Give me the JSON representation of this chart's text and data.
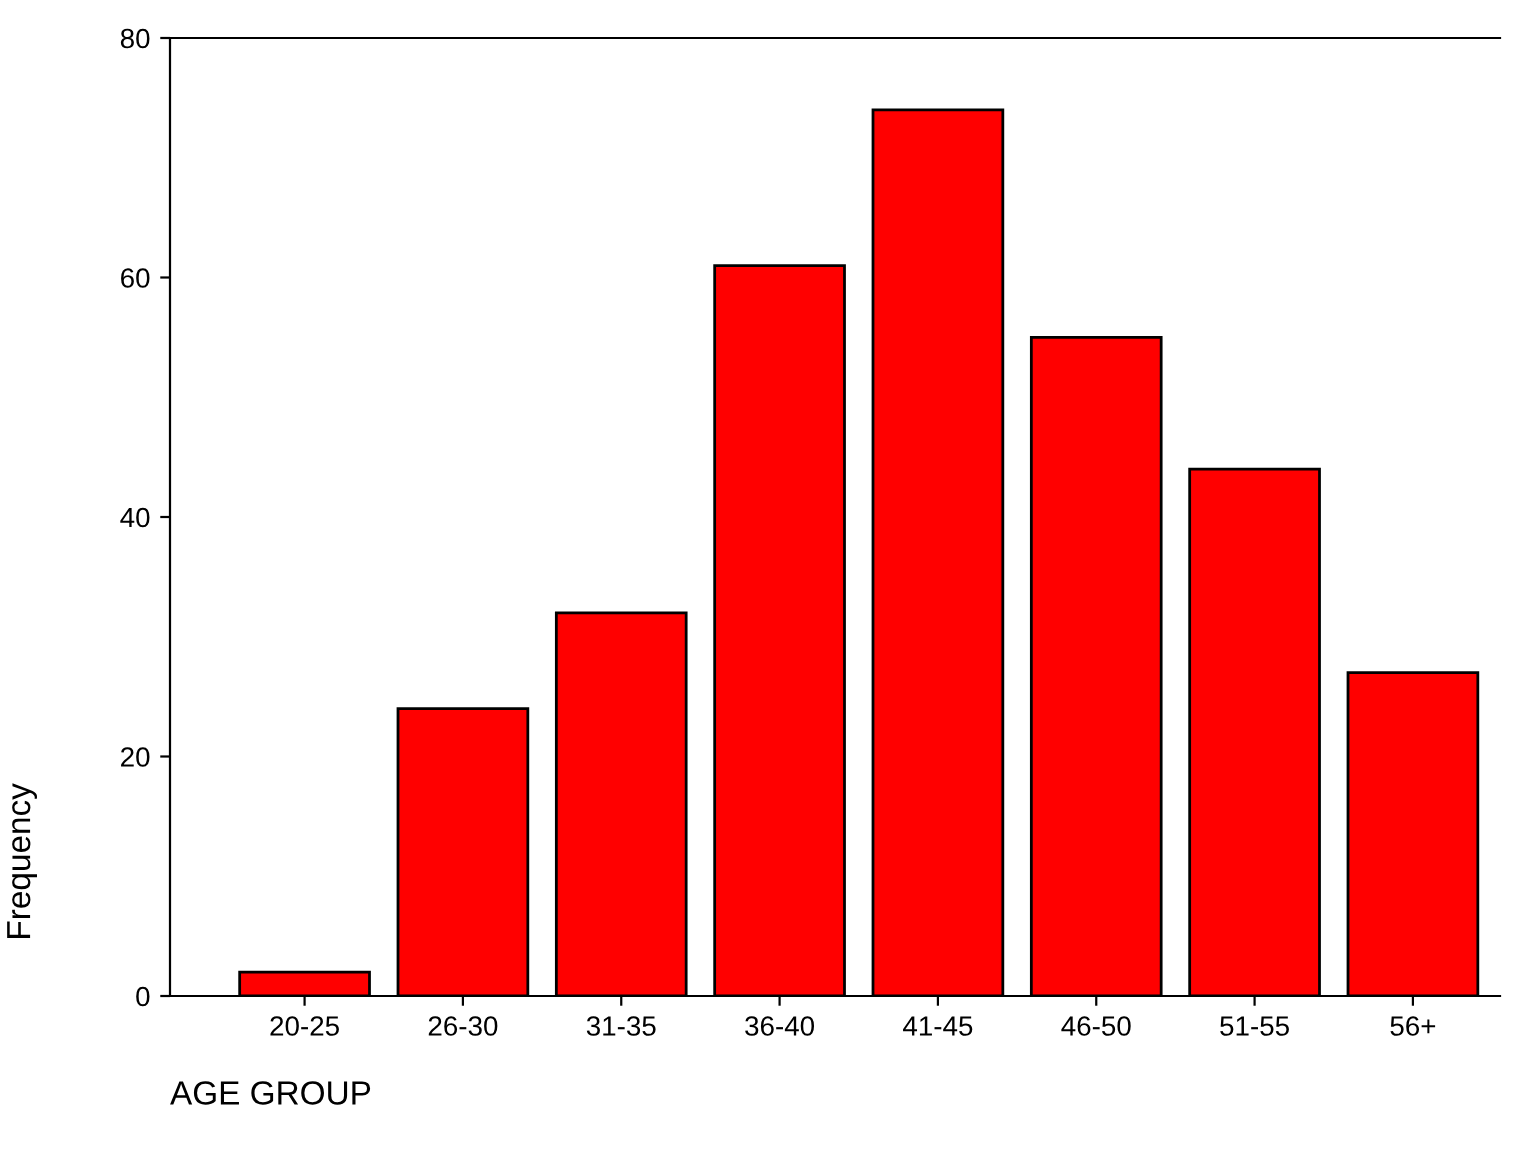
{
  "chart_data": {
    "type": "bar",
    "xlabel": "AGE GROUP",
    "ylabel": "Frequency",
    "categories": [
      "20-25",
      "26-30",
      "31-35",
      "36-40",
      "41-45",
      "46-50",
      "51-55",
      "56+"
    ],
    "values": [
      2,
      24,
      32,
      61,
      74,
      55,
      44,
      27
    ],
    "color": "#ff0000",
    "ylim": [
      0,
      80
    ],
    "yticks": [
      0,
      20,
      40,
      60,
      80
    ],
    "grid": false,
    "legend": false
  }
}
